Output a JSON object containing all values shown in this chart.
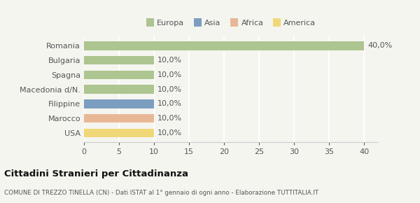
{
  "categories": [
    "Romania",
    "Bulgaria",
    "Spagna",
    "Macedonia d/N.",
    "Filippine",
    "Marocco",
    "USA"
  ],
  "values": [
    40.0,
    10.0,
    10.0,
    10.0,
    10.0,
    10.0,
    10.0
  ],
  "continents": [
    "Europa",
    "Europa",
    "Europa",
    "Europa",
    "Asia",
    "Africa",
    "America"
  ],
  "colors": {
    "Europa": "#adc590",
    "Asia": "#7b9ec0",
    "Africa": "#e8b896",
    "America": "#f0d878"
  },
  "legend_labels": [
    "Europa",
    "Asia",
    "Africa",
    "America"
  ],
  "legend_colors": [
    "#adc590",
    "#7b9ec0",
    "#e8b896",
    "#f0d878"
  ],
  "xlim": [
    0,
    42
  ],
  "xticks": [
    0,
    5,
    10,
    15,
    20,
    25,
    30,
    35,
    40
  ],
  "title": "Cittadini Stranieri per Cittadinanza",
  "subtitle": "COMUNE DI TREZZO TINELLA (CN) - Dati ISTAT al 1° gennaio di ogni anno - Elaborazione TUTTITALIA.IT",
  "background_color": "#f5f5f0",
  "bar_height": 0.6,
  "label_fontsize": 8,
  "value_fontsize": 8
}
